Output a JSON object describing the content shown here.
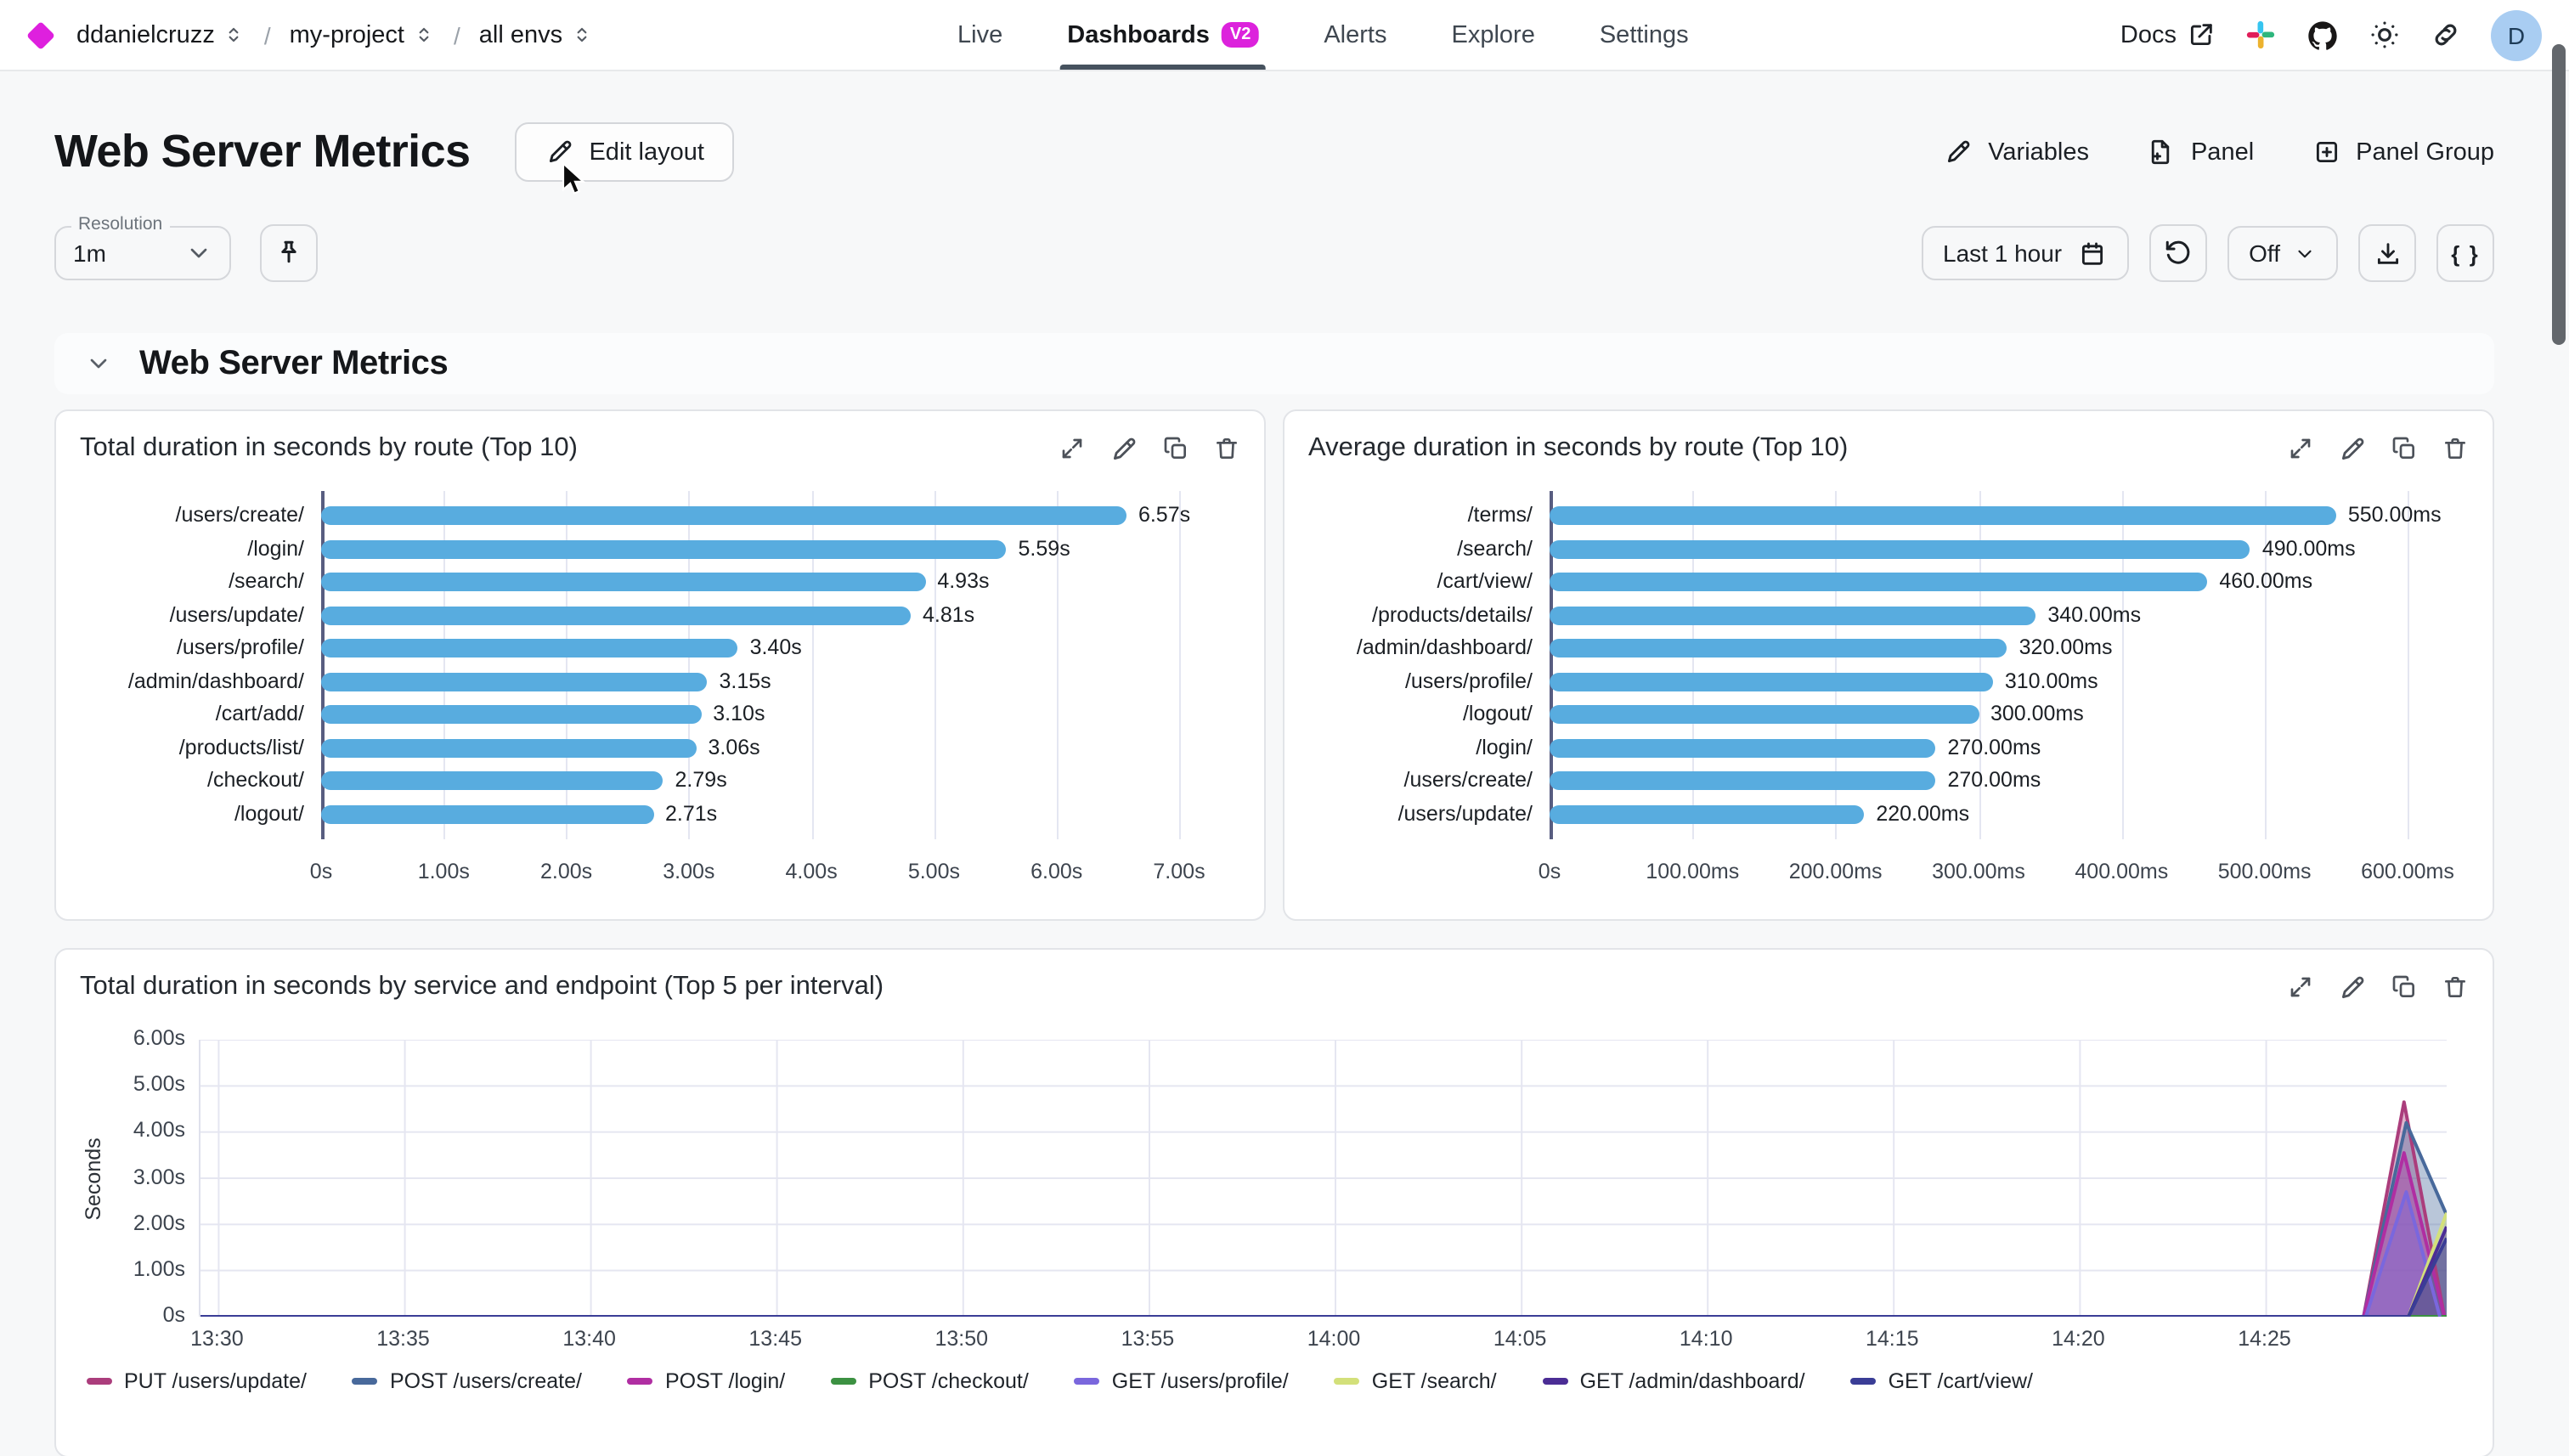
{
  "topbar": {
    "org": "ddanielcruzz",
    "project": "my-project",
    "env": "all envs",
    "tabs": [
      {
        "label": "Live",
        "active": false
      },
      {
        "label": "Dashboards",
        "active": true,
        "badge": "V2"
      },
      {
        "label": "Alerts",
        "active": false
      },
      {
        "label": "Explore",
        "active": false
      },
      {
        "label": "Settings",
        "active": false
      }
    ],
    "docs_label": "Docs",
    "avatar_initial": "D"
  },
  "header": {
    "title": "Web Server Metrics",
    "edit_layout": "Edit layout",
    "variables": "Variables",
    "panel": "Panel",
    "panel_group": "Panel Group"
  },
  "controls": {
    "resolution_label": "Resolution",
    "resolution_value": "1m",
    "time_range": "Last 1 hour",
    "refresh_interval": "Off",
    "code_button": "{ }"
  },
  "section": {
    "title": "Web Server Metrics"
  },
  "colors": {
    "accent_magenta": "#dc22dc",
    "bar_blue": "#58acdf",
    "tab_underline": "#46525e",
    "avatar_bg": "#a9cdf2"
  },
  "chart_data": [
    {
      "type": "bar",
      "orientation": "horizontal",
      "title": "Total duration in seconds by route (Top 10)",
      "categories": [
        "/users/create/",
        "/login/",
        "/search/",
        "/users/update/",
        "/users/profile/",
        "/admin/dashboard/",
        "/cart/add/",
        "/products/list/",
        "/checkout/",
        "/logout/"
      ],
      "values": [
        6.57,
        5.59,
        4.93,
        4.81,
        3.4,
        3.15,
        3.1,
        3.06,
        2.79,
        2.71
      ],
      "value_labels": [
        "6.57s",
        "5.59s",
        "4.93s",
        "4.81s",
        "3.40s",
        "3.15s",
        "3.10s",
        "3.06s",
        "2.79s",
        "2.71s"
      ],
      "x_ticks": [
        "0s",
        "1.00s",
        "2.00s",
        "3.00s",
        "4.00s",
        "5.00s",
        "6.00s",
        "7.00s"
      ],
      "x_max": 7,
      "bar_color": "#58acdf"
    },
    {
      "type": "bar",
      "orientation": "horizontal",
      "title": "Average duration in seconds by route (Top 10)",
      "categories": [
        "/terms/",
        "/search/",
        "/cart/view/",
        "/products/details/",
        "/admin/dashboard/",
        "/users/profile/",
        "/logout/",
        "/login/",
        "/users/create/",
        "/users/update/"
      ],
      "values": [
        550,
        490,
        460,
        340,
        320,
        310,
        300,
        270,
        270,
        220
      ],
      "value_labels": [
        "550.00ms",
        "490.00ms",
        "460.00ms",
        "340.00ms",
        "320.00ms",
        "310.00ms",
        "300.00ms",
        "270.00ms",
        "270.00ms",
        "220.00ms"
      ],
      "x_ticks": [
        "0s",
        "100.00ms",
        "200.00ms",
        "300.00ms",
        "400.00ms",
        "500.00ms",
        "600.00ms"
      ],
      "x_max": 600,
      "bar_color": "#58acdf"
    },
    {
      "type": "area",
      "title": "Total duration in seconds by service and endpoint (Top 5 per interval)",
      "ylabel": "Seconds",
      "y_ticks": [
        "6.00s",
        "5.00s",
        "4.00s",
        "3.00s",
        "2.00s",
        "1.00s",
        "0s"
      ],
      "y_max": 6,
      "x_ticks": [
        "13:30",
        "13:35",
        "13:40",
        "13:45",
        "13:50",
        "13:55",
        "14:00",
        "14:05",
        "14:10",
        "14:15",
        "14:20",
        "14:25"
      ],
      "series": [
        {
          "name": "PUT /users/update/",
          "color": "#ab3d7c",
          "points": [
            [
              0,
              0
            ],
            [
              0.963,
              0
            ],
            [
              0.981,
              4.65
            ],
            [
              0.999,
              0
            ]
          ]
        },
        {
          "name": "POST /users/create/",
          "color": "#48699b",
          "points": [
            [
              0,
              0
            ],
            [
              0.963,
              0
            ],
            [
              0.982,
              4.2
            ],
            [
              1,
              2.2
            ]
          ]
        },
        {
          "name": "POST /login/",
          "color": "#b02ea2",
          "points": [
            [
              0,
              0
            ],
            [
              0.963,
              0
            ],
            [
              0.981,
              3.55
            ],
            [
              0.999,
              0
            ]
          ]
        },
        {
          "name": "POST /checkout/",
          "color": "#3c9142",
          "points": [
            [
              0,
              0
            ],
            [
              1,
              0
            ]
          ]
        },
        {
          "name": "GET /users/profile/",
          "color": "#7a67dd",
          "points": [
            [
              0,
              0
            ],
            [
              0.964,
              0
            ],
            [
              0.982,
              2.7
            ],
            [
              0.997,
              0
            ]
          ]
        },
        {
          "name": "GET /search/",
          "color": "#d3e07a",
          "points": [
            [
              0,
              0
            ],
            [
              0.983,
              0
            ],
            [
              1,
              2.25
            ]
          ]
        },
        {
          "name": "GET /admin/dashboard/",
          "color": "#4b2d95",
          "points": [
            [
              0,
              0
            ],
            [
              0.983,
              0
            ],
            [
              1,
              1.95
            ]
          ]
        },
        {
          "name": "GET /cart/view/",
          "color": "#3a3d96",
          "points": [
            [
              0,
              0
            ],
            [
              0.983,
              0
            ],
            [
              1,
              1.7
            ]
          ]
        }
      ]
    }
  ]
}
